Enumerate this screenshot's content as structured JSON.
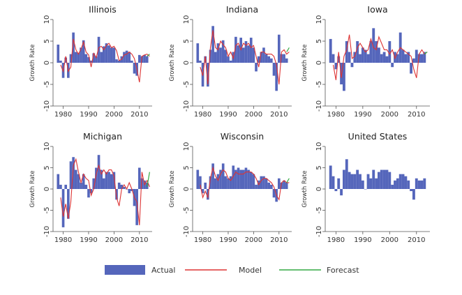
{
  "chart_data": {
    "type": "bar",
    "shared": {
      "ylabel": "Growth Rate",
      "ylim": [
        -10,
        10
      ],
      "yticks": [
        -10,
        -5,
        0,
        5,
        10
      ],
      "xlim": [
        1976,
        2015
      ],
      "xticks": [
        1980,
        1990,
        2000,
        2010
      ],
      "bar_years": [
        1978,
        1979,
        1980,
        1981,
        1982,
        1983,
        1984,
        1985,
        1986,
        1987,
        1988,
        1989,
        1990,
        1991,
        1992,
        1993,
        1994,
        1995,
        1996,
        1997,
        1998,
        1999,
        2000,
        2001,
        2002,
        2003,
        2004,
        2005,
        2006,
        2007,
        2008,
        2009,
        2010,
        2011,
        2012,
        2013
      ],
      "model_start_year": 1979
    },
    "legend": {
      "actual": "Actual",
      "model": "Model",
      "forecast": "Forecast"
    },
    "colors": {
      "actual": "#5566bb",
      "model": "#dd3333",
      "forecast": "#33aa44"
    },
    "panels": [
      {
        "title": "Illinois",
        "actual": [
          4.2,
          0.5,
          -3.5,
          1.2,
          -3.5,
          2.0,
          7.0,
          2.5,
          2.3,
          3.5,
          5.2,
          2.0,
          1.3,
          0.5,
          2.2,
          1.5,
          6.0,
          2.5,
          3.8,
          4.5,
          4.0,
          3.5,
          3.5,
          0.8,
          0.5,
          1.5,
          2.5,
          2.8,
          2.5,
          0.5,
          -2.5,
          -3.0,
          1.8,
          1.5,
          1.8,
          1.5
        ],
        "model": [
          -0.5,
          -2.0,
          1.5,
          -2.0,
          -1.0,
          5.5,
          3.0,
          2.0,
          3.2,
          4.8,
          2.5,
          1.8,
          -1.0,
          2.2,
          1.2,
          3.5,
          3.8,
          3.0,
          4.0,
          4.5,
          3.5,
          3.8,
          2.8,
          0.5,
          0.8,
          1.8,
          2.0,
          2.5,
          2.0,
          1.0,
          -1.5,
          -4.5,
          1.5,
          1.8,
          2.0,
          1.5
        ],
        "forecast": [
          [
            2013,
            1.5
          ],
          [
            2014,
            2.0
          ]
        ]
      },
      {
        "title": "Indiana",
        "actual": [
          4.5,
          0.5,
          -5.5,
          1.5,
          -5.5,
          3.0,
          8.5,
          2.5,
          4.5,
          3.5,
          5.2,
          3.0,
          1.5,
          0.5,
          2.5,
          6.0,
          4.0,
          5.8,
          3.5,
          5.0,
          4.0,
          5.8,
          3.5,
          -2.0,
          1.5,
          2.5,
          3.5,
          2.0,
          1.5,
          1.0,
          -3.0,
          -6.5,
          6.5,
          2.0,
          2.0,
          1.0
        ],
        "model": [
          -1.0,
          -3.0,
          1.5,
          -5.0,
          3.5,
          7.5,
          3.5,
          3.0,
          5.0,
          4.2,
          3.5,
          1.5,
          2.5,
          1.0,
          4.0,
          4.5,
          3.0,
          4.5,
          4.0,
          4.5,
          3.5,
          4.0,
          1.5,
          -1.0,
          2.5,
          2.5,
          2.0,
          2.0,
          2.0,
          1.5,
          -0.5,
          -5.0,
          2.5,
          3.0,
          2.0,
          2.5
        ],
        "forecast": [
          [
            2013,
            2.5
          ],
          [
            2014,
            3.5
          ]
        ]
      },
      {
        "title": "Iowa",
        "actual": [
          5.5,
          2.0,
          -1.5,
          1.5,
          -5.0,
          -6.5,
          5.0,
          2.5,
          -1.0,
          2.5,
          5.0,
          2.0,
          3.5,
          3.0,
          2.0,
          5.0,
          8.0,
          5.0,
          3.5,
          2.0,
          2.5,
          1.5,
          5.0,
          -1.0,
          2.5,
          2.0,
          7.0,
          3.0,
          2.0,
          2.5,
          -2.5,
          1.0,
          3.0,
          2.0,
          2.0,
          2.5
        ],
        "model": [
          -0.5,
          -4.0,
          2.5,
          -3.5,
          1.5,
          3.0,
          6.5,
          1.0,
          1.5,
          3.5,
          4.5,
          3.5,
          2.5,
          3.0,
          5.5,
          3.5,
          3.0,
          6.0,
          4.5,
          3.0,
          3.0,
          2.0,
          3.0,
          1.0,
          2.5,
          3.5,
          3.0,
          2.5,
          2.0,
          1.5,
          -1.5,
          -3.5,
          2.0,
          3.0,
          2.0,
          2.5
        ],
        "forecast": [
          [
            2013,
            2.0
          ],
          [
            2014,
            2.5
          ]
        ]
      },
      {
        "title": "Michigan",
        "actual": [
          3.5,
          1.0,
          -9.0,
          1.0,
          -7.0,
          6.5,
          7.5,
          4.5,
          3.5,
          1.5,
          3.5,
          1.0,
          -2.0,
          -1.0,
          2.5,
          5.0,
          8.0,
          4.5,
          2.5,
          4.0,
          4.0,
          3.5,
          4.0,
          -2.5,
          1.5,
          1.0,
          0.5,
          0.0,
          -1.0,
          -0.5,
          -4.0,
          -8.5,
          5.0,
          2.5,
          2.0,
          1.5
        ],
        "model": [
          -2.0,
          -6.5,
          -3.5,
          -7.0,
          -3.0,
          5.5,
          7.0,
          4.0,
          1.5,
          3.5,
          2.5,
          2.0,
          -1.5,
          0.0,
          3.5,
          5.5,
          3.5,
          4.5,
          3.5,
          4.5,
          4.5,
          3.0,
          -2.0,
          -4.0,
          0.0,
          1.0,
          0.0,
          1.5,
          0.0,
          -2.0,
          -3.0,
          -8.5,
          4.0,
          1.0,
          2.0,
          0.5
        ],
        "forecast": [
          [
            2013,
            0.5
          ],
          [
            2014,
            4.0
          ]
        ]
      },
      {
        "title": "Wisconsin",
        "actual": [
          4.5,
          3.0,
          -1.0,
          1.5,
          -2.5,
          3.0,
          6.0,
          2.5,
          3.5,
          4.5,
          6.0,
          3.0,
          2.5,
          3.0,
          5.5,
          4.5,
          5.0,
          4.5,
          4.5,
          5.0,
          4.5,
          4.0,
          3.5,
          1.0,
          2.0,
          3.0,
          3.0,
          2.5,
          1.5,
          1.0,
          -2.0,
          -3.0,
          2.5,
          1.5,
          2.0,
          1.5
        ],
        "model": [
          1.0,
          -2.0,
          -0.5,
          -2.0,
          2.5,
          5.0,
          3.0,
          2.0,
          3.5,
          4.5,
          4.0,
          2.5,
          2.0,
          3.0,
          4.0,
          3.5,
          3.5,
          3.5,
          4.0,
          4.0,
          4.0,
          3.5,
          2.5,
          1.0,
          2.0,
          2.5,
          2.5,
          2.0,
          1.5,
          0.5,
          -1.5,
          -2.5,
          1.5,
          2.0,
          1.5,
          1.5
        ],
        "forecast": [
          [
            2013,
            1.5
          ],
          [
            2014,
            2.5
          ]
        ]
      },
      {
        "title": "United States",
        "actual": [
          5.5,
          3.0,
          -0.5,
          2.5,
          -1.5,
          4.5,
          7.0,
          4.0,
          3.5,
          3.5,
          4.5,
          3.5,
          2.0,
          0.0,
          3.5,
          2.5,
          4.5,
          2.5,
          4.0,
          4.5,
          4.5,
          4.5,
          4.0,
          1.0,
          2.0,
          2.5,
          3.5,
          3.5,
          3.0,
          2.0,
          -0.5,
          -2.5,
          2.5,
          2.0,
          2.0,
          2.5
        ],
        "model": null,
        "forecast": null
      }
    ]
  }
}
